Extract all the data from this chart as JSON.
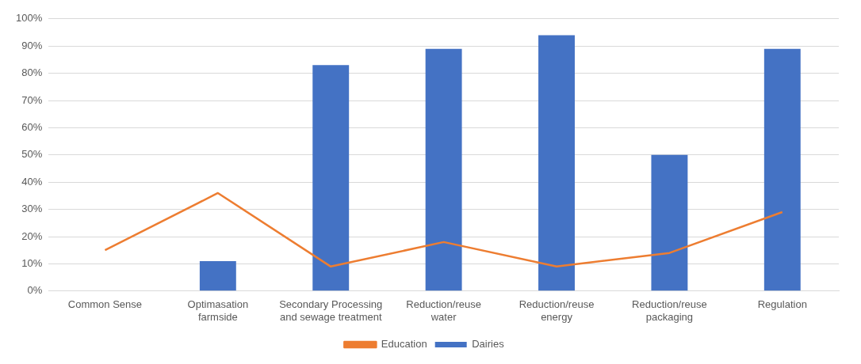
{
  "chart_data": {
    "type": "bar",
    "categories": [
      "Common Sense",
      "Optimasation farmside",
      "Secondary Processing and sewage treatment",
      "Reduction/reuse water",
      "Reduction/reuse energy",
      "Reduction/reuse packaging",
      "Regulation"
    ],
    "series": [
      {
        "name": "Dairies",
        "color": "#4472c4",
        "values": [
          0,
          11,
          83,
          89,
          94,
          50,
          89
        ]
      },
      {
        "name": "Education",
        "type": "line",
        "color": "#ed7d31",
        "values": [
          15,
          36,
          9,
          18,
          9,
          14,
          29
        ]
      }
    ],
    "ylim": [
      0,
      100
    ],
    "yticks": [
      {
        "value": 0,
        "label": "0%"
      },
      {
        "value": 10,
        "label": "10%"
      },
      {
        "value": 20,
        "label": "20%"
      },
      {
        "value": 30,
        "label": "30%"
      },
      {
        "value": 40,
        "label": "40%"
      },
      {
        "value": 50,
        "label": "50%"
      },
      {
        "value": 60,
        "label": "60%"
      },
      {
        "value": 70,
        "label": "70%"
      },
      {
        "value": 80,
        "label": "80%"
      },
      {
        "value": 90,
        "label": "90%"
      },
      {
        "value": 100,
        "label": "100%"
      }
    ],
    "grid": "y",
    "legend": "bottom",
    "marker": "none"
  }
}
